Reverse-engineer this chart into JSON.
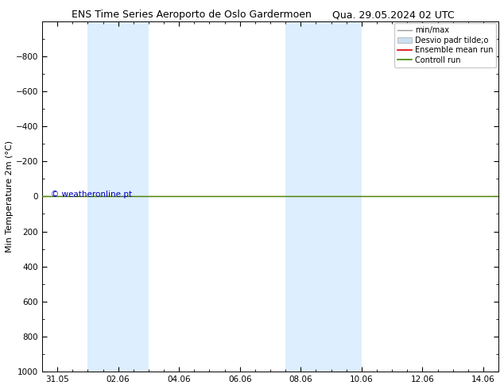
{
  "title_left": "ENS Time Series Aeroporto de Oslo Gardermoen",
  "title_right": "Qua. 29.05.2024 02 UTC",
  "ylabel": "Min Temperature 2m (°C)",
  "ylim_top": -1000,
  "ylim_bottom": 1000,
  "yticks": [
    -800,
    -600,
    -400,
    -200,
    0,
    200,
    400,
    600,
    800,
    1000
  ],
  "xlabel_ticks": [
    "31.05",
    "02.06",
    "04.06",
    "06.06",
    "08.06",
    "10.06",
    "12.06",
    "14.06"
  ],
  "xlabel_values": [
    0,
    2,
    4,
    6,
    8,
    10,
    12,
    14
  ],
  "xlim": [
    -0.5,
    14.5
  ],
  "shaded_regions": [
    {
      "xmin": 1.0,
      "xmax": 3.0
    },
    {
      "xmin": 7.5,
      "xmax": 10.0
    }
  ],
  "shaded_color": "#ddeeff",
  "green_line_y": 0,
  "green_line_color": "#448800",
  "red_line_color": "#dd0000",
  "copyright_text": "© weatheronline.pt",
  "copyright_color": "#0000bb",
  "legend_entries": [
    "min/max",
    "Desvio padr tilde;o",
    "Ensemble mean run",
    "Controll run"
  ],
  "bg_color": "#ffffff",
  "plot_bg_color": "#ffffff",
  "border_color": "#000000",
  "tick_color": "#000000",
  "title_fontsize": 9,
  "axis_label_fontsize": 8,
  "tick_fontsize": 7.5,
  "legend_fontsize": 7
}
